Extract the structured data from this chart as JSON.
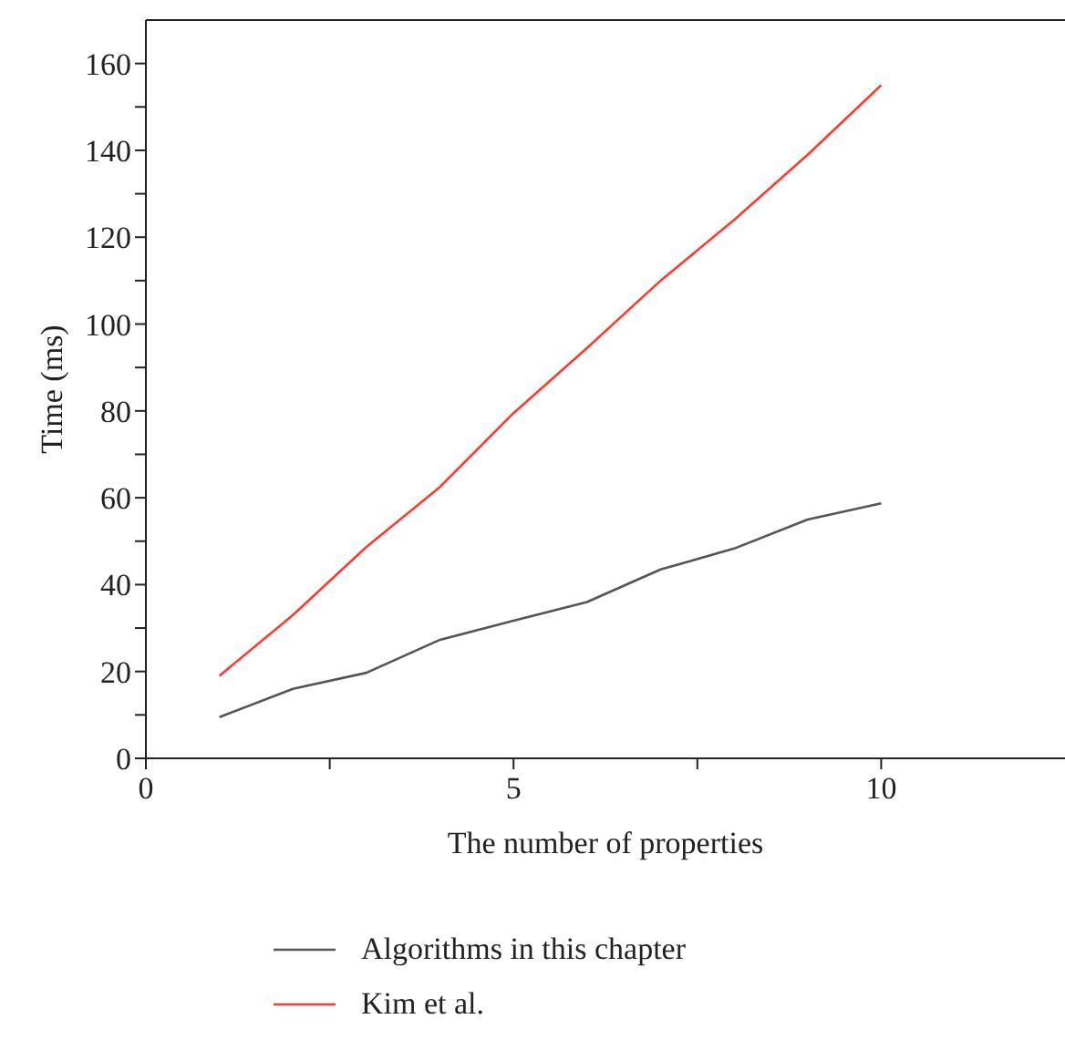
{
  "chart_data": {
    "type": "line",
    "xlabel": "The number of properties",
    "ylabel": "Time (ms)",
    "x": [
      1,
      2,
      3,
      4,
      5,
      6,
      7,
      8,
      9,
      10
    ],
    "series": [
      {
        "name": "Algorithms in this chapter",
        "color": "#555555",
        "values": [
          9.5,
          16,
          19.7,
          27.3,
          31.7,
          36,
          43.5,
          48.3,
          55,
          58.7
        ]
      },
      {
        "name": "Kim et al.",
        "color": "#ff3b30",
        "values": [
          19,
          33,
          48.7,
          62.5,
          79.5,
          94.5,
          110,
          124,
          139,
          155
        ]
      }
    ],
    "xlim": [
      0,
      12.5
    ],
    "xticks": [
      0,
      {
        "value": 2.5,
        "label": null
      },
      5,
      {
        "value": 7.5,
        "label": null
      },
      10
    ],
    "ylim": [
      0,
      170
    ],
    "yticks": [
      0,
      {
        "value": 10,
        "label": null
      },
      20,
      {
        "value": 30,
        "label": null
      },
      40,
      {
        "value": 50,
        "label": null
      },
      60,
      {
        "value": 70,
        "label": null
      },
      80,
      {
        "value": 90,
        "label": null
      },
      100,
      {
        "value": 110,
        "label": null
      },
      120,
      {
        "value": 130,
        "label": null
      },
      140,
      {
        "value": 150,
        "label": null
      },
      160
    ],
    "grid": false,
    "legend": "bottom left",
    "marker": "none",
    "line_style": "solid"
  }
}
